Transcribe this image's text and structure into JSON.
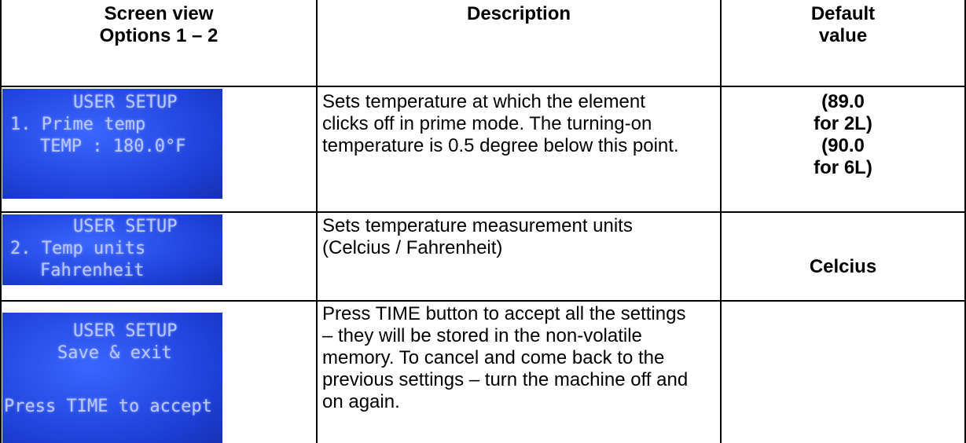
{
  "table": {
    "header": {
      "screen_view": [
        "Screen view",
        "Options 1 – 2"
      ],
      "description": "Description",
      "default_value": [
        "Default",
        "value"
      ]
    },
    "rows": [
      {
        "screen": [
          "USER SETUP",
          "1. Prime temp",
          "TEMP : 180.0°F"
        ],
        "description": [
          "Sets temperature at which the element",
          "clicks off in prime mode. The turning-on",
          "temperature is 0.5 degree below this point."
        ],
        "default_value": [
          "(89.0",
          "for 2L)",
          "(90.0",
          "for 6L)"
        ]
      },
      {
        "screen": [
          "USER SETUP",
          "2. Temp units",
          "Fahrenheit"
        ],
        "description": [
          "Sets temperature measurement units",
          "(Celcius / Fahrenheit)"
        ],
        "default_value": [
          "Celcius"
        ]
      },
      {
        "screen": [
          "USER SETUP",
          "Save & exit",
          "Press TIME to accept"
        ],
        "description": [
          "Press TIME button to accept all the settings",
          "– they will be stored in the non-volatile",
          "memory. To cancel and come back to the",
          "previous settings – turn the machine off and",
          "on again."
        ],
        "default_value": []
      }
    ]
  }
}
